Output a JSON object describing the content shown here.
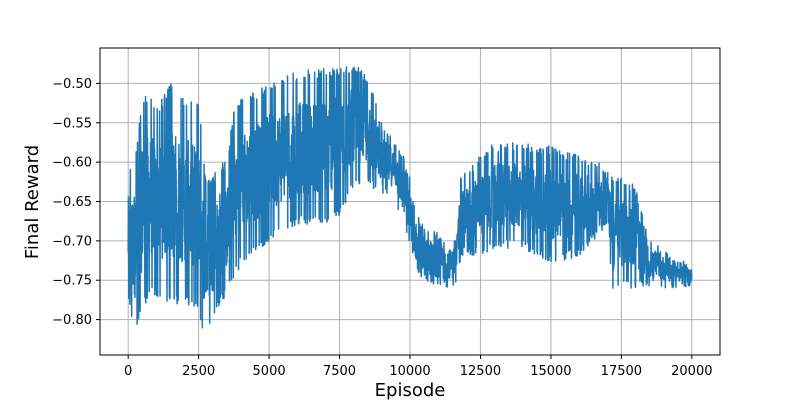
{
  "chart_data": {
    "type": "line",
    "title": "",
    "xlabel": "Episode",
    "ylabel": "Final Reward",
    "xlim": [
      -1000,
      21000
    ],
    "ylim": [
      -0.845,
      -0.455
    ],
    "grid": true,
    "x_ticks": [
      0,
      2500,
      5000,
      7500,
      10000,
      12500,
      15000,
      17500,
      20000
    ],
    "x_tick_labels": [
      "0",
      "2500",
      "5000",
      "7500",
      "10000",
      "12500",
      "15000",
      "17500",
      "20000"
    ],
    "y_ticks": [
      -0.5,
      -0.55,
      -0.6,
      -0.65,
      -0.7,
      -0.75,
      -0.8
    ],
    "y_tick_labels": [
      "−0.50",
      "−0.55",
      "−0.60",
      "−0.65",
      "−0.70",
      "−0.75",
      "−0.80"
    ],
    "line_color": "#1f77b4",
    "series": [
      {
        "envelope": {
          "x": [
            0,
            250,
            500,
            750,
            1000,
            1500,
            2000,
            2500,
            2750,
            3000,
            3250,
            3500,
            3750,
            4000,
            5000,
            6000,
            7000,
            7500,
            8000,
            8500,
            9000,
            9500,
            9800,
            10000,
            10200,
            10500,
            11000,
            11500,
            11700,
            11800,
            12000,
            12500,
            13000,
            14000,
            15000,
            16000,
            16500,
            17000,
            17200,
            17500,
            18000,
            18500,
            19000,
            19500,
            20000
          ],
          "high": [
            -0.61,
            -0.59,
            -0.52,
            -0.51,
            -0.53,
            -0.5,
            -0.52,
            -0.52,
            -0.62,
            -0.62,
            -0.6,
            -0.6,
            -0.53,
            -0.52,
            -0.5,
            -0.485,
            -0.48,
            -0.48,
            -0.475,
            -0.49,
            -0.55,
            -0.57,
            -0.59,
            -0.62,
            -0.66,
            -0.68,
            -0.69,
            -0.7,
            -0.68,
            -0.62,
            -0.61,
            -0.59,
            -0.575,
            -0.575,
            -0.58,
            -0.59,
            -0.595,
            -0.61,
            -0.62,
            -0.62,
            -0.63,
            -0.7,
            -0.71,
            -0.72,
            -0.73
          ],
          "low": [
            -0.78,
            -0.82,
            -0.79,
            -0.77,
            -0.77,
            -0.78,
            -0.78,
            -0.79,
            -0.83,
            -0.8,
            -0.78,
            -0.77,
            -0.75,
            -0.73,
            -0.7,
            -0.68,
            -0.68,
            -0.67,
            -0.63,
            -0.63,
            -0.64,
            -0.65,
            -0.69,
            -0.71,
            -0.74,
            -0.76,
            -0.76,
            -0.76,
            -0.75,
            -0.72,
            -0.72,
            -0.72,
            -0.71,
            -0.71,
            -0.73,
            -0.72,
            -0.7,
            -0.68,
            -0.77,
            -0.76,
            -0.76,
            -0.76,
            -0.76,
            -0.76,
            -0.76
          ]
        }
      }
    ]
  }
}
